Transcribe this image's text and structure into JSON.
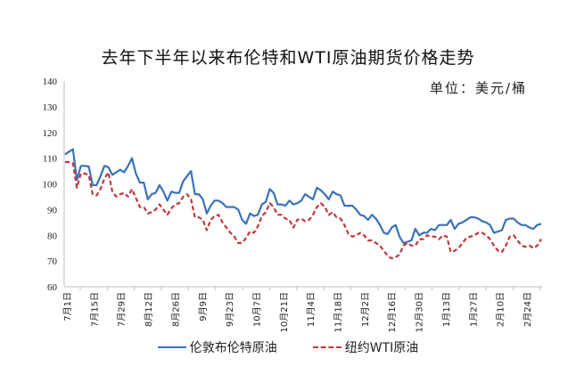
{
  "chart_data": {
    "type": "line",
    "title": "去年下半年以来布伦特和WTI原油期货价格走势",
    "unit_label": "单位：美元/桶",
    "xlabel": "",
    "ylabel": "",
    "ylim": [
      60,
      140
    ],
    "yticks": [
      60,
      70,
      80,
      90,
      100,
      110,
      120,
      130,
      140
    ],
    "xticks": [
      "7月1日",
      "7月15日",
      "7月29日",
      "8月12日",
      "8月26日",
      "9月9日",
      "9月23日",
      "10月7日",
      "10月21日",
      "11月4日",
      "11月18日",
      "12月2日",
      "12月16日",
      "12月30日",
      "1月13日",
      "1月27日",
      "2月10日",
      "2月24日"
    ],
    "grid": false,
    "legend_position": "bottom",
    "series": [
      {
        "name": "伦敦布伦特原油",
        "color": "#3a72b8",
        "style": "solid",
        "values": [
          111.5,
          112.5,
          113.5,
          101.5,
          107,
          107,
          106.8,
          99.5,
          99.5,
          103,
          107,
          106.5,
          103.5,
          104.5,
          105.5,
          104.5,
          107,
          110,
          104,
          100.5,
          100.5,
          94,
          96,
          96.5,
          99.5,
          97,
          93.5,
          97,
          96.5,
          96.5,
          101,
          103,
          105,
          96,
          96,
          94,
          88.5,
          91.5,
          93.5,
          93.5,
          92.5,
          91,
          91,
          91,
          90,
          86,
          84.5,
          88.5,
          87.5,
          88,
          92,
          93,
          98,
          96.5,
          92,
          92,
          91.5,
          93.5,
          92,
          92.5,
          93.5,
          96,
          95,
          94,
          98.5,
          97.5,
          96,
          94,
          97,
          96,
          95.5,
          91.5,
          91.5,
          91.5,
          90,
          88,
          87.5,
          86,
          88,
          86.5,
          84,
          81,
          80.5,
          83,
          84,
          79.5,
          77,
          77.5,
          78,
          82.5,
          80,
          81,
          81,
          82.5,
          82,
          84,
          84,
          84,
          86,
          82.5,
          84.5,
          85,
          86,
          87,
          87,
          86.5,
          85.5,
          85,
          84,
          81,
          81.5,
          82,
          86,
          86.5,
          86.5,
          85,
          84,
          84,
          83,
          82.5,
          84,
          84.5
        ]
      },
      {
        "name": "纽约WTI原油",
        "color": "#c0393b",
        "style": "dashed",
        "values": [
          108.5,
          108.5,
          108,
          98.5,
          104,
          104,
          103.5,
          96,
          95.5,
          98,
          102,
          104.5,
          97,
          95,
          96,
          96.5,
          95,
          98,
          94.5,
          91,
          91,
          88.5,
          89,
          90,
          92,
          90,
          88,
          90.5,
          92,
          92.5,
          95,
          96,
          94,
          87,
          87,
          86,
          82,
          86,
          87.5,
          88,
          85,
          83,
          81,
          79.5,
          77,
          77,
          79,
          81.5,
          81,
          83.5,
          87.5,
          89,
          92.5,
          91,
          88,
          88,
          86.5,
          86,
          83,
          86,
          86.5,
          85.5,
          86,
          88,
          91,
          92.5,
          91,
          88,
          89,
          87,
          86.5,
          84,
          80.5,
          79.5,
          80,
          81,
          80,
          78,
          78,
          77,
          76,
          74,
          72,
          71,
          71.5,
          72.5,
          76,
          77,
          76,
          76,
          78.5,
          78.5,
          80,
          79.5,
          79.5,
          78.5,
          80,
          79.5,
          73.5,
          74,
          75,
          77,
          79,
          79.5,
          80,
          81,
          81,
          80,
          78.5,
          76,
          74,
          73.5,
          76,
          79.5,
          80,
          78,
          76,
          75.5,
          76,
          75,
          76,
          78.5
        ]
      }
    ]
  }
}
